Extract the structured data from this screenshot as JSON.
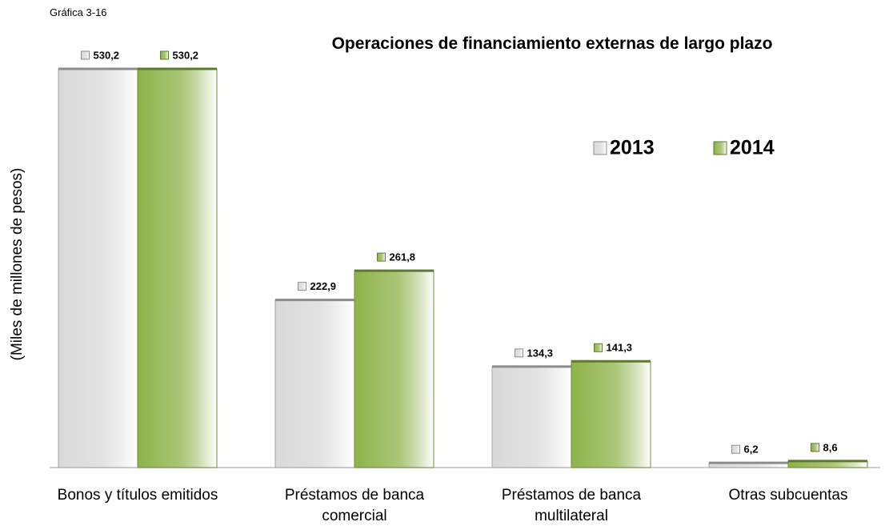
{
  "chart_data": {
    "type": "bar",
    "subtitle": "Gráfica 3-16",
    "title": "Operaciones de financiamiento externas de largo plazo",
    "y_label": "(Miles de millones de pesos)",
    "categories": [
      "Bonos y títulos emitidos",
      "Préstamos de banca comercial",
      "Préstamos de banca multilateral",
      "Otras subcuentas"
    ],
    "series": [
      {
        "name": "2013",
        "color": "#d9d9d9",
        "values": [
          530.2,
          222.9,
          134.3,
          6.2
        ],
        "value_labels": [
          "530,2",
          "222,9",
          "134,3",
          "6,2"
        ]
      },
      {
        "name": "2014",
        "color": "#8db34a",
        "values": [
          530.2,
          261.8,
          141.3,
          8.6
        ],
        "value_labels": [
          "530,2",
          "261,8",
          "141,3",
          "8,6"
        ]
      }
    ]
  }
}
